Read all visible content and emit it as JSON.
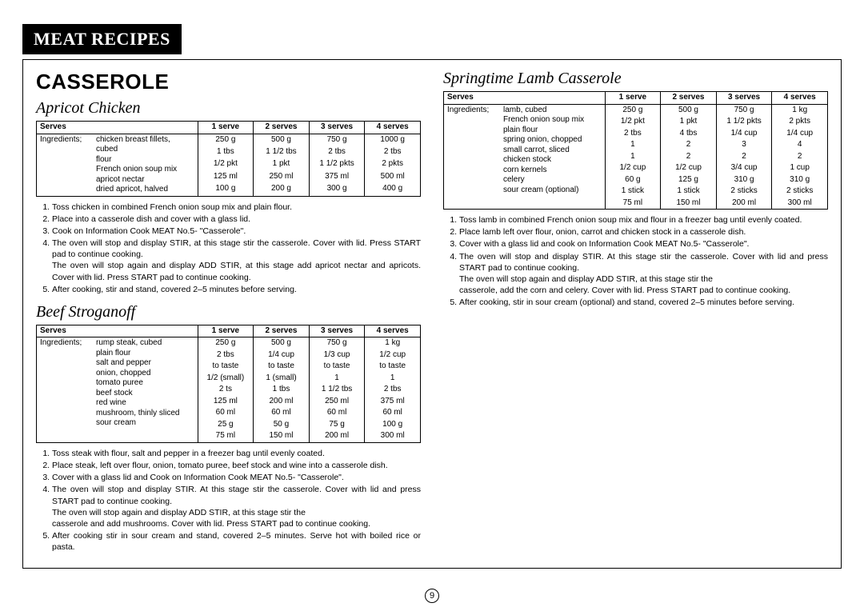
{
  "banner": "MEAT RECIPES",
  "section": "CASSEROLE",
  "page_number": "9",
  "columns_header": {
    "serves": "Serves",
    "c1": "1 serve",
    "c2": "2 serves",
    "c3": "3 serves",
    "c4": "4 serves"
  },
  "ingredients_label": "Ingredients;",
  "recipes": {
    "apricot": {
      "title": "Apricot Chicken",
      "rows": [
        {
          "name": "chicken breast fillets, cubed",
          "v": [
            "250 g",
            "500 g",
            "750 g",
            "1000 g"
          ]
        },
        {
          "name": "flour",
          "v": [
            "1 tbs",
            "1 1/2 tbs",
            "2 tbs",
            "2 tbs"
          ]
        },
        {
          "name": "French onion soup mix",
          "v": [
            "1/2 pkt",
            "1 pkt",
            "1 1/2 pkts",
            "2 pkts"
          ]
        },
        {
          "name": "apricot nectar",
          "v": [
            "125 ml",
            "250 ml",
            "375 ml",
            "500 ml"
          ]
        },
        {
          "name": "dried apricot, halved",
          "v": [
            "100 g",
            "200 g",
            "300 g",
            "400 g"
          ]
        }
      ],
      "steps": [
        "Toss chicken in combined French onion soup mix and plain flour.",
        "Place into a casserole dish and cover with a glass lid.",
        "Cook on Information Cook MEAT No.5- \"Casserole\".",
        "The oven will stop and display STIR, at this stage stir the casserole. Cover with lid. Press START pad to continue cooking.\nThe oven will stop again and display ADD STIR, at this stage add apricot nectar and apricots. Cover with lid. Press START pad to continue cooking.",
        "After cooking, stir and stand, covered 2–5 minutes before serving."
      ]
    },
    "beef": {
      "title": "Beef Stroganoff",
      "rows": [
        {
          "name": "rump steak, cubed",
          "v": [
            "250 g",
            "500 g",
            "750 g",
            "1 kg"
          ]
        },
        {
          "name": "plain flour",
          "v": [
            "2 tbs",
            "1/4 cup",
            "1/3 cup",
            "1/2 cup"
          ]
        },
        {
          "name": "salt and pepper",
          "v": [
            "to taste",
            "to taste",
            "to taste",
            "to taste"
          ]
        },
        {
          "name": "onion, chopped",
          "v": [
            "1/2 (small)",
            "1 (small)",
            "1",
            "1"
          ]
        },
        {
          "name": "tomato puree",
          "v": [
            "2 ts",
            "1 tbs",
            "1 1/2 tbs",
            "2 tbs"
          ]
        },
        {
          "name": "beef stock",
          "v": [
            "125 ml",
            "200 ml",
            "250 ml",
            "375 ml"
          ]
        },
        {
          "name": "red wine",
          "v": [
            "60 ml",
            "60 ml",
            "60 ml",
            "60 ml"
          ]
        },
        {
          "name": "mushroom, thinly sliced",
          "v": [
            "25 g",
            "50 g",
            "75 g",
            "100 g"
          ]
        },
        {
          "name": "sour cream",
          "v": [
            "75 ml",
            "150 ml",
            "200 ml",
            "300 ml"
          ]
        }
      ],
      "steps": [
        "Toss steak with flour, salt and pepper in a freezer bag until evenly coated.",
        "Place steak, left over flour, onion, tomato puree, beef stock and wine into a casserole dish.",
        "Cover with a glass lid and Cook on Information Cook MEAT No.5- \"Casserole\".",
        "The oven will stop and display STIR. At this stage stir the casserole. Cover with lid and press START pad to continue cooking.\nThe oven will stop again and display ADD STIR, at this stage stir the\ncasserole and add mushrooms. Cover with lid. Press START pad to continue cooking.",
        "After cooking stir in sour cream and stand, covered 2–5 minutes. Serve hot with boiled rice or pasta."
      ]
    },
    "lamb": {
      "title": "Springtime Lamb Casserole",
      "rows": [
        {
          "name": "lamb, cubed",
          "v": [
            "250 g",
            "500 g",
            "750 g",
            "1 kg"
          ]
        },
        {
          "name": "French onion soup mix",
          "v": [
            "1/2 pkt",
            "1 pkt",
            "1 1/2 pkts",
            "2 pkts"
          ]
        },
        {
          "name": "plain flour",
          "v": [
            "2 tbs",
            "4 tbs",
            "1/4 cup",
            "1/4 cup"
          ]
        },
        {
          "name": "spring onion, chopped",
          "v": [
            "1",
            "2",
            "3",
            "4"
          ]
        },
        {
          "name": "small carrot, sliced",
          "v": [
            "1",
            "2",
            "2",
            "2"
          ]
        },
        {
          "name": "chicken stock",
          "v": [
            "1/2 cup",
            "1/2 cup",
            "3/4 cup",
            "1 cup"
          ]
        },
        {
          "name": "corn kernels",
          "v": [
            "60 g",
            "125 g",
            "310 g",
            "310 g"
          ]
        },
        {
          "name": "celery",
          "v": [
            "1 stick",
            "1 stick",
            "2 sticks",
            "2 sticks"
          ]
        },
        {
          "name": "sour cream (optional)",
          "v": [
            "75 ml",
            "150 ml",
            "200 ml",
            "300 ml"
          ]
        }
      ],
      "steps": [
        "Toss lamb in combined French onion soup mix and flour in a freezer bag until evenly coated.",
        "Place lamb left over flour, onion, carrot and chicken stock in a casserole dish.",
        "Cover with a glass lid and cook on Information Cook MEAT No.5- \"Casserole\".",
        "The oven will stop and display STIR. At this stage stir the casserole. Cover with lid and press START pad to continue cooking.\nThe oven will stop again and display ADD STIR, at this stage stir the\ncasserole, add the corn and celery. Cover with lid. Press START pad to continue cooking.",
        "After cooking, stir in sour cream (optional) and stand, covered 2–5 minutes before serving."
      ]
    }
  }
}
